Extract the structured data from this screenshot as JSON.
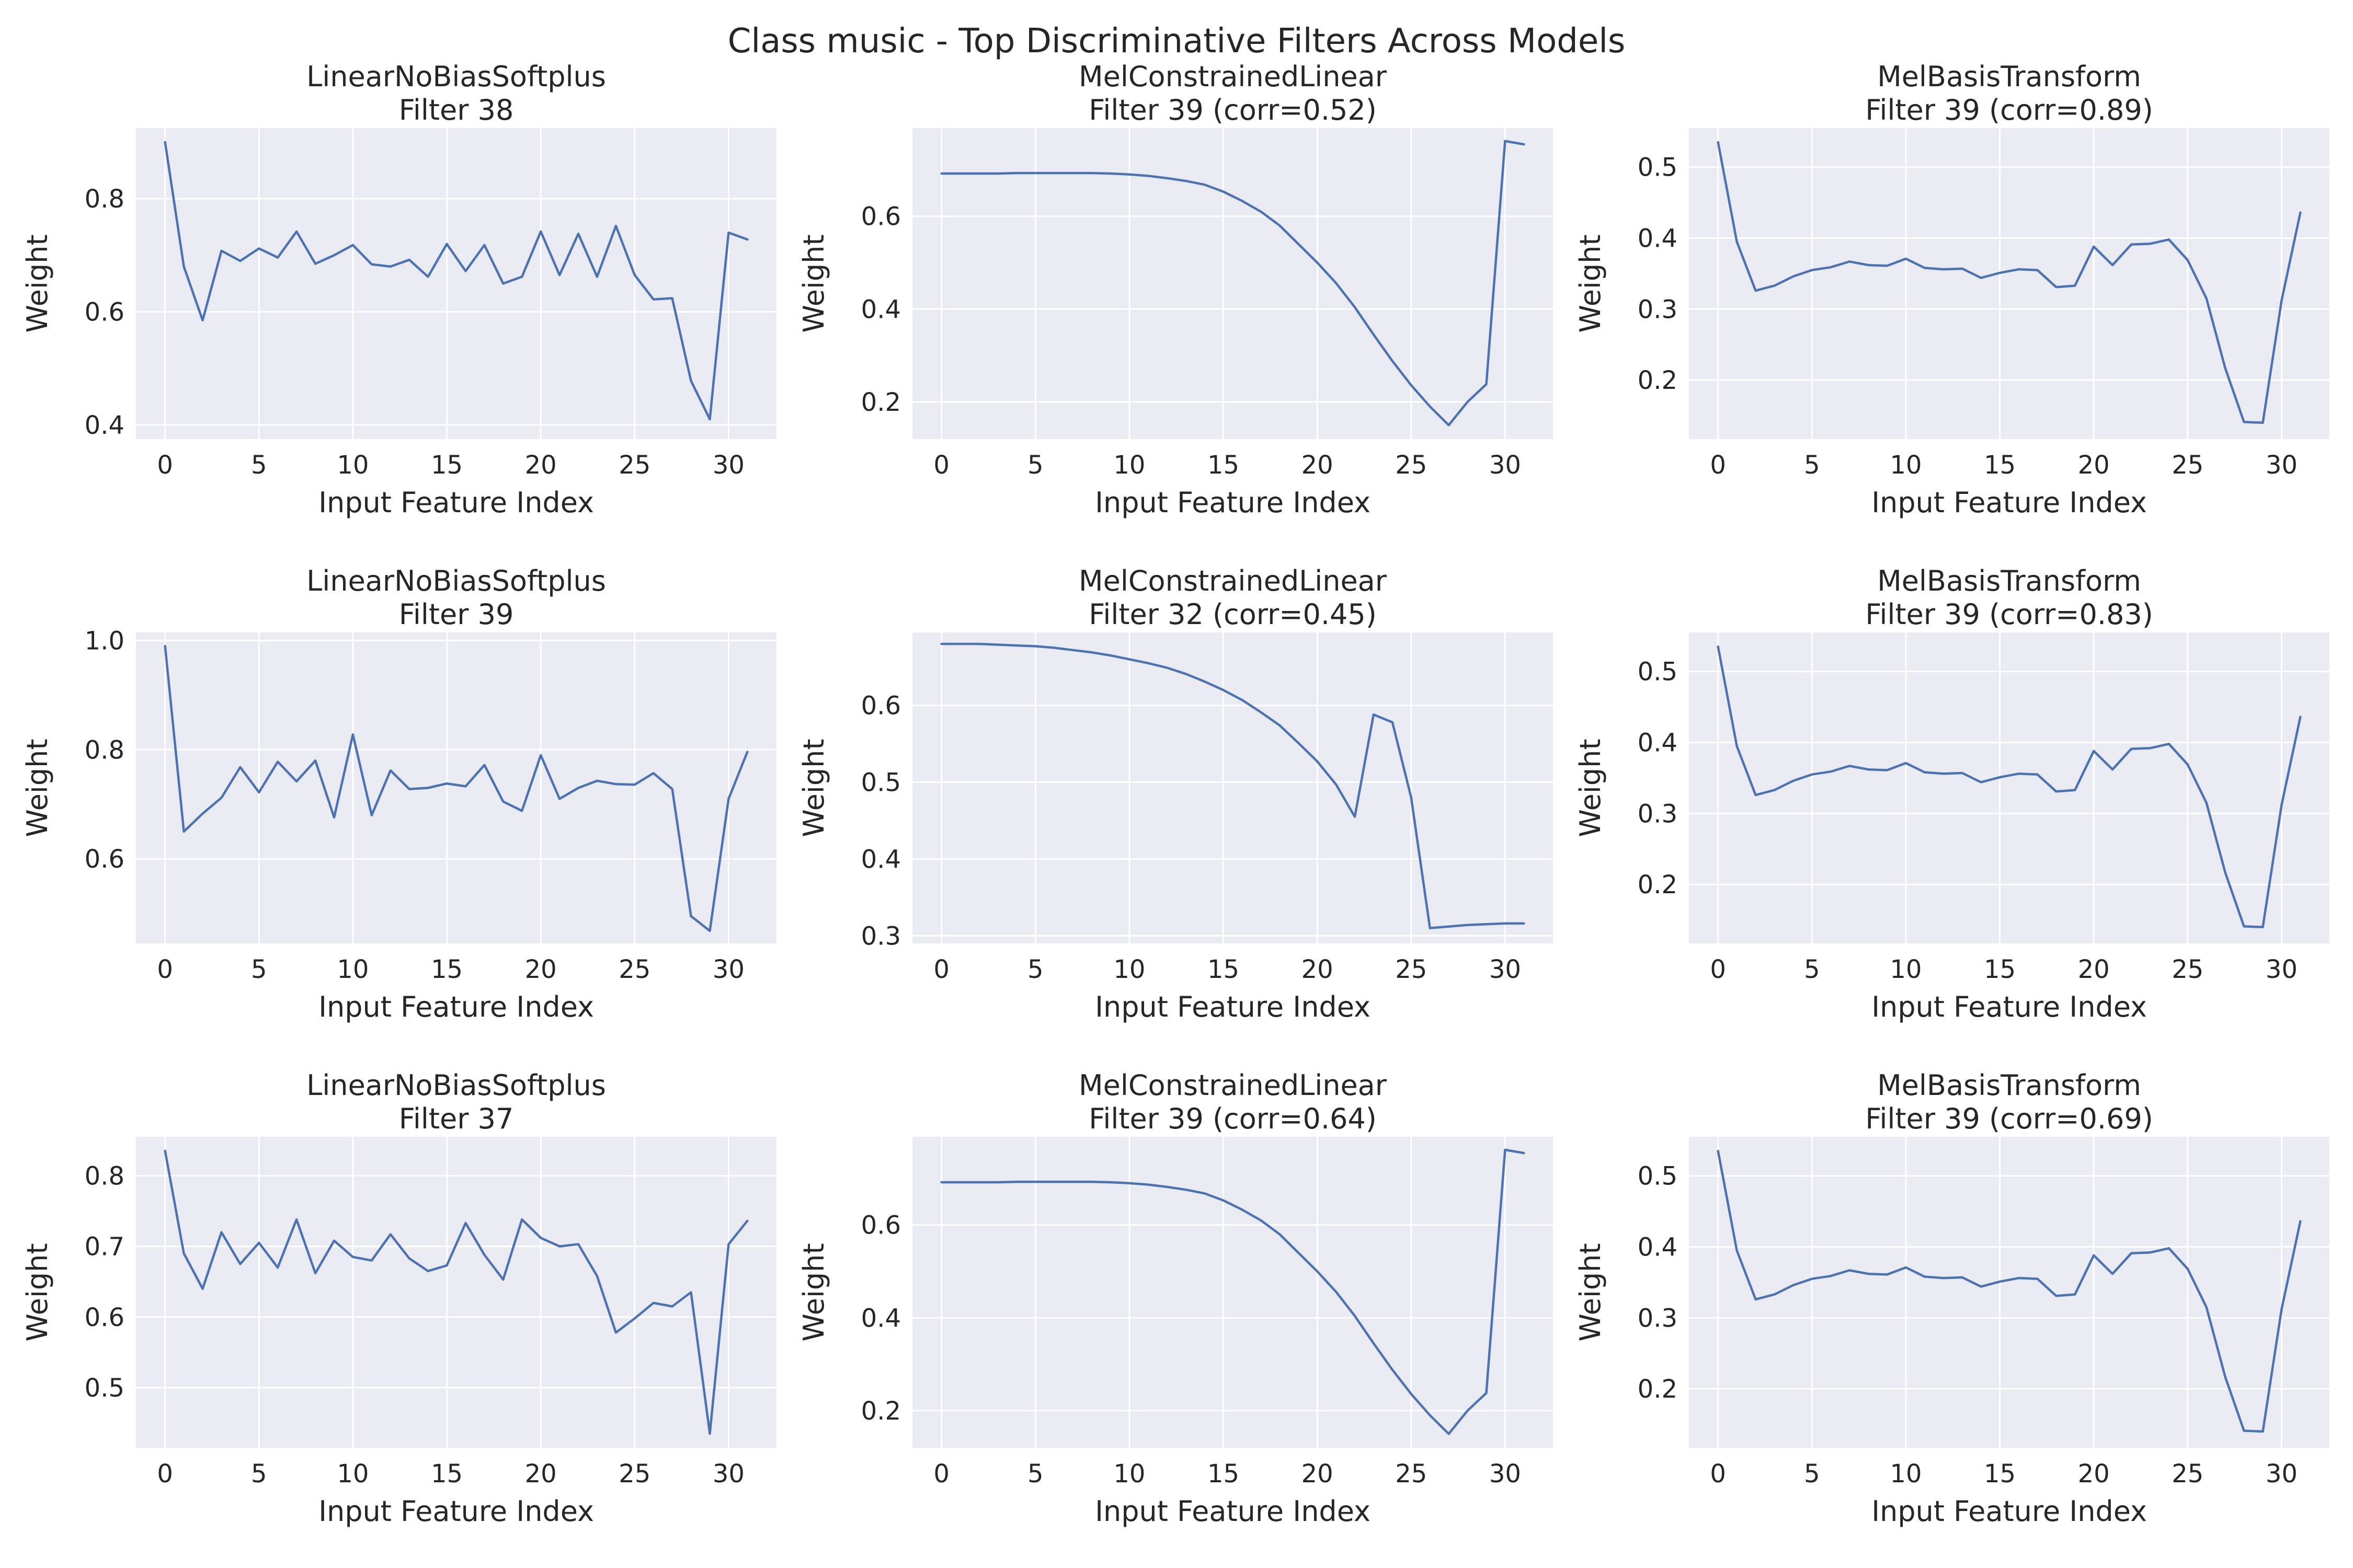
{
  "figure": {
    "title": "Class music - Top Discriminative Filters Across Models"
  },
  "style": {
    "axes_bg": "#eaeaf2",
    "grid": "#ffffff",
    "line": "#4c72b0",
    "text": "#262626"
  },
  "chart_data": [
    {
      "type": "line",
      "title": "LinearNoBiasSoftplus",
      "subtitle": "Filter 38",
      "xlabel": "Input Feature Index",
      "ylabel": "Weight",
      "xlim": [
        -1.55,
        32.55
      ],
      "ylim": [
        0.375,
        0.925
      ],
      "xticks": [
        0,
        5,
        10,
        15,
        20,
        25,
        30
      ],
      "yticks": [
        0.4,
        0.6,
        0.8
      ],
      "ytick_labels": [
        "0.4",
        "0.6",
        "0.8"
      ],
      "grid": true,
      "series": [
        {
          "values": [
            0.9,
            0.68,
            0.585,
            0.708,
            0.69,
            0.712,
            0.696,
            0.742,
            0.685,
            0.7,
            0.718,
            0.684,
            0.68,
            0.692,
            0.662,
            0.72,
            0.672,
            0.718,
            0.65,
            0.662,
            0.742,
            0.665,
            0.738,
            0.662,
            0.752,
            0.665,
            0.622,
            0.624,
            0.478,
            0.41,
            0.74,
            0.728
          ]
        }
      ]
    },
    {
      "type": "line",
      "title": "MelConstrainedLinear",
      "subtitle": "Filter 39 (corr=0.52)",
      "xlabel": "Input Feature Index",
      "ylabel": "Weight",
      "xlim": [
        -1.55,
        32.55
      ],
      "ylim": [
        0.12,
        0.79
      ],
      "xticks": [
        0,
        5,
        10,
        15,
        20,
        25,
        30
      ],
      "yticks": [
        0.2,
        0.4,
        0.6
      ],
      "ytick_labels": [
        "0.2",
        "0.4",
        "0.6"
      ],
      "grid": true,
      "series": [
        {
          "values": [
            0.692,
            0.692,
            0.692,
            0.692,
            0.693,
            0.693,
            0.693,
            0.693,
            0.693,
            0.692,
            0.69,
            0.687,
            0.682,
            0.676,
            0.668,
            0.653,
            0.633,
            0.61,
            0.58,
            0.54,
            0.5,
            0.456,
            0.404,
            0.345,
            0.288,
            0.236,
            0.19,
            0.15,
            0.2,
            0.238,
            0.762,
            0.755
          ]
        }
      ]
    },
    {
      "type": "line",
      "title": "MelBasisTransform",
      "subtitle": "Filter 39 (corr=0.89)",
      "xlabel": "Input Feature Index",
      "ylabel": "Weight",
      "xlim": [
        -1.55,
        32.55
      ],
      "ylim": [
        0.117,
        0.555
      ],
      "xticks": [
        0,
        5,
        10,
        15,
        20,
        25,
        30
      ],
      "yticks": [
        0.2,
        0.3,
        0.4,
        0.5
      ],
      "ytick_labels": [
        "0.2",
        "0.3",
        "0.4",
        "0.5"
      ],
      "grid": true,
      "series": [
        {
          "values": [
            0.535,
            0.395,
            0.326,
            0.333,
            0.346,
            0.355,
            0.359,
            0.367,
            0.362,
            0.361,
            0.371,
            0.358,
            0.356,
            0.357,
            0.344,
            0.351,
            0.356,
            0.355,
            0.331,
            0.333,
            0.388,
            0.362,
            0.391,
            0.392,
            0.398,
            0.369,
            0.315,
            0.217,
            0.141,
            0.14,
            0.312,
            0.436
          ]
        }
      ]
    },
    {
      "type": "line",
      "title": "LinearNoBiasSoftplus",
      "subtitle": "Filter 39",
      "xlabel": "Input Feature Index",
      "ylabel": "Weight",
      "xlim": [
        -1.55,
        32.55
      ],
      "ylim": [
        0.445,
        1.015
      ],
      "xticks": [
        0,
        5,
        10,
        15,
        20,
        25,
        30
      ],
      "yticks": [
        0.6,
        0.8,
        1.0
      ],
      "ytick_labels": [
        "0.6",
        "0.8",
        "1.0"
      ],
      "grid": true,
      "series": [
        {
          "values": [
            0.99,
            0.65,
            0.683,
            0.712,
            0.768,
            0.722,
            0.778,
            0.742,
            0.78,
            0.676,
            0.828,
            0.68,
            0.762,
            0.728,
            0.73,
            0.738,
            0.733,
            0.772,
            0.705,
            0.688,
            0.79,
            0.71,
            0.73,
            0.743,
            0.737,
            0.736,
            0.757,
            0.728,
            0.495,
            0.468,
            0.71,
            0.796
          ]
        }
      ]
    },
    {
      "type": "line",
      "title": "MelConstrainedLinear",
      "subtitle": "Filter 32 (corr=0.45)",
      "xlabel": "Input Feature Index",
      "ylabel": "Weight",
      "xlim": [
        -1.55,
        32.55
      ],
      "ylim": [
        0.29,
        0.695
      ],
      "xticks": [
        0,
        5,
        10,
        15,
        20,
        25,
        30
      ],
      "yticks": [
        0.3,
        0.4,
        0.5,
        0.6
      ],
      "ytick_labels": [
        "0.3",
        "0.4",
        "0.5",
        "0.6"
      ],
      "grid": true,
      "series": [
        {
          "values": [
            0.68,
            0.68,
            0.68,
            0.679,
            0.678,
            0.677,
            0.675,
            0.672,
            0.669,
            0.665,
            0.66,
            0.655,
            0.649,
            0.641,
            0.631,
            0.62,
            0.607,
            0.591,
            0.574,
            0.551,
            0.527,
            0.497,
            0.455,
            0.588,
            0.578,
            0.48,
            0.31,
            0.312,
            0.314,
            0.315,
            0.316,
            0.316
          ]
        }
      ]
    },
    {
      "type": "line",
      "title": "MelBasisTransform",
      "subtitle": "Filter 39 (corr=0.83)",
      "xlabel": "Input Feature Index",
      "ylabel": "Weight",
      "xlim": [
        -1.55,
        32.55
      ],
      "ylim": [
        0.117,
        0.555
      ],
      "xticks": [
        0,
        5,
        10,
        15,
        20,
        25,
        30
      ],
      "yticks": [
        0.2,
        0.3,
        0.4,
        0.5
      ],
      "ytick_labels": [
        "0.2",
        "0.3",
        "0.4",
        "0.5"
      ],
      "grid": true,
      "series": [
        {
          "values": [
            0.535,
            0.395,
            0.326,
            0.333,
            0.346,
            0.355,
            0.359,
            0.367,
            0.362,
            0.361,
            0.371,
            0.358,
            0.356,
            0.357,
            0.344,
            0.351,
            0.356,
            0.355,
            0.331,
            0.333,
            0.388,
            0.362,
            0.391,
            0.392,
            0.398,
            0.369,
            0.315,
            0.217,
            0.141,
            0.14,
            0.312,
            0.436
          ]
        }
      ]
    },
    {
      "type": "line",
      "title": "LinearNoBiasSoftplus",
      "subtitle": "Filter 37",
      "xlabel": "Input Feature Index",
      "ylabel": "Weight",
      "xlim": [
        -1.55,
        32.55
      ],
      "ylim": [
        0.415,
        0.855
      ],
      "xticks": [
        0,
        5,
        10,
        15,
        20,
        25,
        30
      ],
      "yticks": [
        0.5,
        0.6,
        0.7,
        0.8
      ],
      "ytick_labels": [
        "0.5",
        "0.6",
        "0.7",
        "0.8"
      ],
      "grid": true,
      "series": [
        {
          "values": [
            0.835,
            0.69,
            0.64,
            0.72,
            0.675,
            0.705,
            0.67,
            0.738,
            0.662,
            0.708,
            0.685,
            0.68,
            0.717,
            0.683,
            0.665,
            0.673,
            0.733,
            0.688,
            0.653,
            0.738,
            0.712,
            0.7,
            0.703,
            0.658,
            0.578,
            0.598,
            0.62,
            0.615,
            0.635,
            0.435,
            0.703,
            0.736
          ]
        }
      ]
    },
    {
      "type": "line",
      "title": "MelConstrainedLinear",
      "subtitle": "Filter 39 (corr=0.64)",
      "xlabel": "Input Feature Index",
      "ylabel": "Weight",
      "xlim": [
        -1.55,
        32.55
      ],
      "ylim": [
        0.12,
        0.79
      ],
      "xticks": [
        0,
        5,
        10,
        15,
        20,
        25,
        30
      ],
      "yticks": [
        0.2,
        0.4,
        0.6
      ],
      "ytick_labels": [
        "0.2",
        "0.4",
        "0.6"
      ],
      "grid": true,
      "series": [
        {
          "values": [
            0.692,
            0.692,
            0.692,
            0.692,
            0.693,
            0.693,
            0.693,
            0.693,
            0.693,
            0.692,
            0.69,
            0.687,
            0.682,
            0.676,
            0.668,
            0.653,
            0.633,
            0.61,
            0.58,
            0.54,
            0.5,
            0.456,
            0.404,
            0.345,
            0.288,
            0.236,
            0.19,
            0.15,
            0.2,
            0.238,
            0.762,
            0.755
          ]
        }
      ]
    },
    {
      "type": "line",
      "title": "MelBasisTransform",
      "subtitle": "Filter 39 (corr=0.69)",
      "xlabel": "Input Feature Index",
      "ylabel": "Weight",
      "xlim": [
        -1.55,
        32.55
      ],
      "ylim": [
        0.117,
        0.555
      ],
      "xticks": [
        0,
        5,
        10,
        15,
        20,
        25,
        30
      ],
      "yticks": [
        0.2,
        0.3,
        0.4,
        0.5
      ],
      "ytick_labels": [
        "0.2",
        "0.3",
        "0.4",
        "0.5"
      ],
      "grid": true,
      "series": [
        {
          "values": [
            0.535,
            0.395,
            0.326,
            0.333,
            0.346,
            0.355,
            0.359,
            0.367,
            0.362,
            0.361,
            0.371,
            0.358,
            0.356,
            0.357,
            0.344,
            0.351,
            0.356,
            0.355,
            0.331,
            0.333,
            0.388,
            0.362,
            0.391,
            0.392,
            0.398,
            0.369,
            0.315,
            0.217,
            0.141,
            0.14,
            0.312,
            0.436
          ]
        }
      ]
    }
  ]
}
